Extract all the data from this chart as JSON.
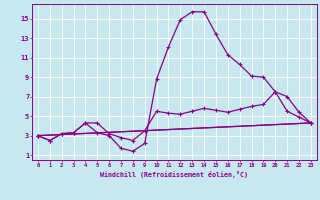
{
  "xlabel": "Windchill (Refroidissement éolien,°C)",
  "background_color": "#c8e8f0",
  "line_color": "#880088",
  "x_ticks": [
    0,
    1,
    2,
    3,
    4,
    5,
    6,
    7,
    8,
    9,
    10,
    11,
    12,
    13,
    14,
    15,
    16,
    17,
    18,
    19,
    20,
    21,
    22,
    23
  ],
  "y_ticks": [
    1,
    3,
    5,
    7,
    9,
    11,
    13,
    15
  ],
  "xlim": [
    -0.5,
    23.5
  ],
  "ylim": [
    0.5,
    16.5
  ],
  "line1_x": [
    0,
    1,
    2,
    3,
    4,
    5,
    6,
    7,
    8,
    9,
    10,
    11,
    12,
    13,
    14,
    15,
    16,
    17,
    18,
    19,
    20,
    21,
    22,
    23
  ],
  "line1_y": [
    3.0,
    2.5,
    3.2,
    3.3,
    4.3,
    3.3,
    3.0,
    1.7,
    1.4,
    2.2,
    8.8,
    12.1,
    14.9,
    15.7,
    15.7,
    13.4,
    11.3,
    10.3,
    9.1,
    9.0,
    7.5,
    5.5,
    4.9,
    4.3
  ],
  "line2_x": [
    0,
    1,
    2,
    3,
    4,
    5,
    6,
    7,
    8,
    9,
    10,
    11,
    12,
    13,
    14,
    15,
    16,
    17,
    18,
    19,
    20,
    21,
    22,
    23
  ],
  "line2_y": [
    3.0,
    2.5,
    3.2,
    3.3,
    4.3,
    4.3,
    3.2,
    2.8,
    2.5,
    3.5,
    5.5,
    5.3,
    5.2,
    5.5,
    5.8,
    5.6,
    5.4,
    5.7,
    6.0,
    6.2,
    7.5,
    7.0,
    5.4,
    4.3
  ],
  "line3_x": [
    0,
    4,
    10,
    23
  ],
  "line3_y": [
    3.0,
    4.3,
    4.5,
    4.3
  ],
  "line4_x": [
    0,
    4,
    10,
    23
  ],
  "line4_y": [
    3.0,
    4.3,
    4.5,
    4.3
  ]
}
